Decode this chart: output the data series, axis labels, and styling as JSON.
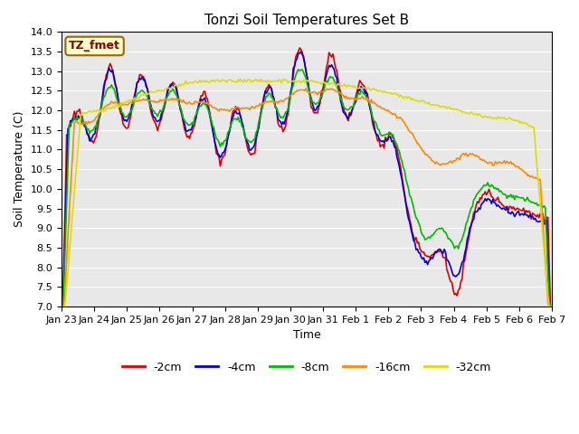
{
  "title": "Tonzi Soil Temperatures Set B",
  "xlabel": "Time",
  "ylabel": "Soil Temperature (C)",
  "ylim": [
    7.0,
    14.0
  ],
  "yticks": [
    7.0,
    7.5,
    8.0,
    8.5,
    9.0,
    9.5,
    10.0,
    10.5,
    11.0,
    11.5,
    12.0,
    12.5,
    13.0,
    13.5,
    14.0
  ],
  "xtick_labels": [
    "Jan 23",
    "Jan 24",
    "Jan 25",
    "Jan 26",
    "Jan 27",
    "Jan 28",
    "Jan 29",
    "Jan 30",
    "Jan 31",
    "Feb 1",
    "Feb 2",
    "Feb 3",
    "Feb 4",
    "Feb 5",
    "Feb 6",
    "Feb 7"
  ],
  "legend_box_label": "TZ_fmet",
  "legend_box_facecolor": "#ffffcc",
  "legend_box_edgecolor": "#996600",
  "lines": [
    {
      "label": "-2cm",
      "color": "#dd0000",
      "lw": 1.2
    },
    {
      "label": "-4cm",
      "color": "#0000dd",
      "lw": 1.2
    },
    {
      "label": "-8cm",
      "color": "#00bb00",
      "lw": 1.2
    },
    {
      "label": "-16cm",
      "color": "#ff8800",
      "lw": 1.2
    },
    {
      "label": "-32cm",
      "color": "#dddd00",
      "lw": 1.2
    }
  ],
  "plot_bg_color": "#e8e8e8",
  "fig_bg_color": "#ffffff",
  "grid_color": "#ffffff",
  "title_fontsize": 11,
  "axis_fontsize": 9,
  "tick_fontsize": 8
}
